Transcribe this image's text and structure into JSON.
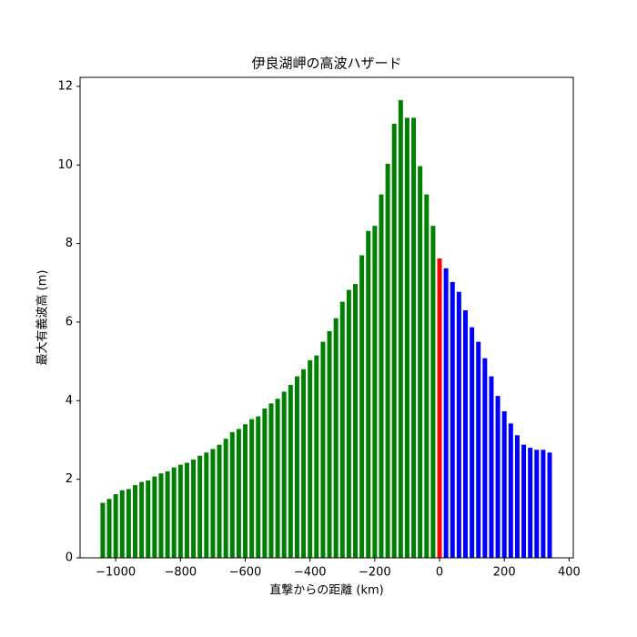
{
  "chart_data": {
    "type": "bar",
    "title": "伊良湖岬の高波ハザード",
    "xlabel": "直撃からの距離 (km)",
    "ylabel": "最大有義波高 (m)",
    "bar_width": 14,
    "series": [
      {
        "color": "#008000",
        "x": [
          -1040,
          -1020,
          -1000,
          -980,
          -960,
          -940,
          -920,
          -900,
          -880,
          -860,
          -840,
          -820,
          -800,
          -780,
          -760,
          -740,
          -720,
          -700,
          -680,
          -660,
          -640,
          -620,
          -600,
          -580,
          -560,
          -540,
          -520,
          -500,
          -480,
          -460,
          -440,
          -420,
          -400,
          -380,
          -360,
          -340,
          -320,
          -300,
          -280,
          -260,
          -240,
          -220,
          -200,
          -180,
          -160,
          -140,
          -120,
          -100,
          -80,
          -60,
          -40,
          -20
        ],
        "values": [
          1.4,
          1.5,
          1.62,
          1.72,
          1.75,
          1.85,
          1.93,
          1.97,
          2.07,
          2.15,
          2.2,
          2.3,
          2.37,
          2.42,
          2.5,
          2.6,
          2.68,
          2.77,
          2.88,
          3.03,
          3.2,
          3.28,
          3.4,
          3.53,
          3.6,
          3.8,
          3.93,
          4.05,
          4.23,
          4.4,
          4.62,
          4.8,
          5.03,
          5.15,
          5.5,
          5.77,
          6.1,
          6.52,
          6.82,
          6.97,
          7.7,
          8.32,
          8.45,
          9.25,
          10.03,
          11.05,
          11.65,
          11.2,
          11.2,
          9.97,
          9.25,
          8.45
        ]
      },
      {
        "color": "#ff0000",
        "x": [
          0
        ],
        "values": [
          7.62
        ]
      },
      {
        "color": "#0000ff",
        "x": [
          20,
          40,
          60,
          80,
          100,
          120,
          140,
          160,
          180,
          200,
          220,
          240,
          260,
          280,
          300,
          320,
          340
        ],
        "values": [
          7.37,
          7.02,
          6.77,
          6.3,
          5.87,
          5.5,
          5.08,
          4.62,
          4.12,
          3.73,
          3.42,
          3.12,
          2.88,
          2.8,
          2.75,
          2.75,
          2.68
        ]
      }
    ],
    "xlim": [
      -1110,
      413
    ],
    "ylim": [
      0,
      12.23
    ],
    "xticks": [
      {
        "value": -1000,
        "label": "−1000"
      },
      {
        "value": -800,
        "label": "−800"
      },
      {
        "value": -600,
        "label": "−600"
      },
      {
        "value": -400,
        "label": "−400"
      },
      {
        "value": -200,
        "label": "−200"
      },
      0,
      200,
      400
    ],
    "yticks": [
      0,
      2,
      4,
      6,
      8,
      10,
      12
    ]
  }
}
